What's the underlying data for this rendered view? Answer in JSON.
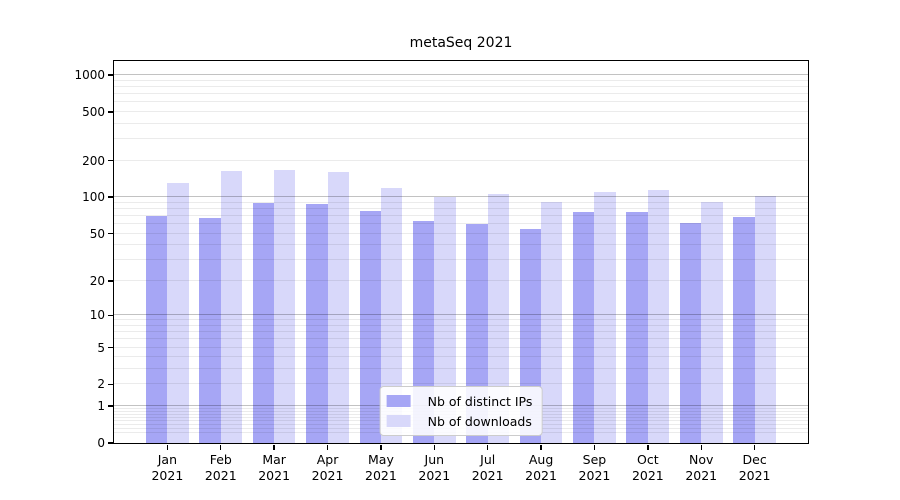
{
  "title": "metaSeq 2021",
  "chart_data": {
    "type": "bar",
    "title": "metaSeq 2021",
    "categories": [
      "Jan",
      "Feb",
      "Mar",
      "Apr",
      "May",
      "Jun",
      "Jul",
      "Aug",
      "Sep",
      "Oct",
      "Nov",
      "Dec"
    ],
    "category_year": "2021",
    "series": [
      {
        "name": "Nb of distinct IPs",
        "color": "#a6a6f5",
        "values": [
          70,
          67,
          90,
          88,
          77,
          64,
          60,
          55,
          75,
          76,
          61,
          69
        ]
      },
      {
        "name": "Nb of downloads",
        "color": "#d8d8fa",
        "values": [
          130,
          164,
          166,
          161,
          119,
          101,
          106,
          91,
          111,
          114,
          91,
          102
        ]
      }
    ],
    "xlabel": "",
    "ylabel": "",
    "yscale": "log10(1+x)",
    "ylim": [
      0,
      1300
    ],
    "y_ticks": [
      0,
      1,
      2,
      5,
      10,
      20,
      50,
      100,
      200,
      500,
      1000
    ],
    "grid": "horizontal major+minor, drawn over bars",
    "legend_position": "lower center"
  },
  "colors": {
    "background": "#ffffff",
    "axis": "#000000",
    "bar_distinct_ips": "#a6a6f5",
    "bar_downloads": "#d8d8fa",
    "grid_major": "rgba(0,0,0,0.24)",
    "grid_minor": "rgba(0,0,0,0.08)",
    "legend_border": "#cccccc",
    "legend_background": "rgba(255,255,255,0.88)",
    "text": "#000000"
  }
}
